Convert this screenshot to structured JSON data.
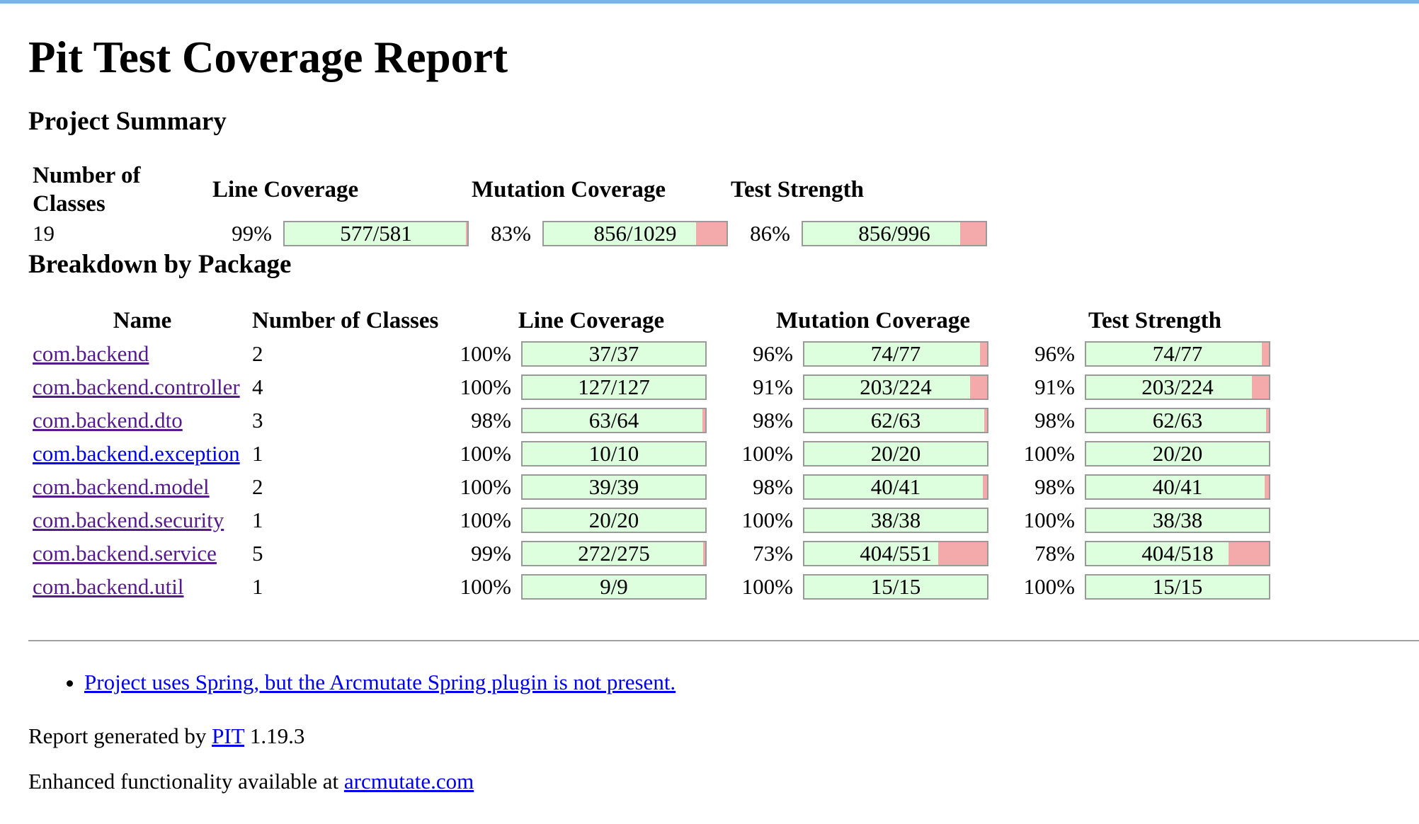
{
  "title": "Pit Test Coverage Report",
  "summary": {
    "heading": "Project Summary",
    "headers": {
      "classes": "Number of Classes",
      "line": "Line Coverage",
      "mutation": "Mutation Coverage",
      "strength": "Test Strength"
    },
    "classes": "19",
    "line": {
      "pct": "99%",
      "text": "577/581",
      "ratio": 0.9931
    },
    "mutation": {
      "pct": "83%",
      "text": "856/1029",
      "ratio": 0.8319
    },
    "strength": {
      "pct": "86%",
      "text": "856/996",
      "ratio": 0.8594
    }
  },
  "breakdown": {
    "heading": "Breakdown by Package",
    "headers": {
      "name": "Name",
      "classes": "Number of Classes",
      "line": "Line Coverage",
      "mutation": "Mutation Coverage",
      "strength": "Test Strength"
    },
    "rows": [
      {
        "name": "com.backend",
        "classes": "2",
        "line": {
          "pct": "100%",
          "text": "37/37",
          "ratio": 1.0
        },
        "mutation": {
          "pct": "96%",
          "text": "74/77",
          "ratio": 0.961
        },
        "strength": {
          "pct": "96%",
          "text": "74/77",
          "ratio": 0.961
        }
      },
      {
        "name": "com.backend.controller",
        "classes": "4",
        "line": {
          "pct": "100%",
          "text": "127/127",
          "ratio": 1.0
        },
        "mutation": {
          "pct": "91%",
          "text": "203/224",
          "ratio": 0.906
        },
        "strength": {
          "pct": "91%",
          "text": "203/224",
          "ratio": 0.906
        }
      },
      {
        "name": "com.backend.dto",
        "classes": "3",
        "line": {
          "pct": "98%",
          "text": "63/64",
          "ratio": 0.984
        },
        "mutation": {
          "pct": "98%",
          "text": "62/63",
          "ratio": 0.984
        },
        "strength": {
          "pct": "98%",
          "text": "62/63",
          "ratio": 0.984
        }
      },
      {
        "name": "com.backend.exception",
        "classes": "1",
        "visited": false,
        "line": {
          "pct": "100%",
          "text": "10/10",
          "ratio": 1.0
        },
        "mutation": {
          "pct": "100%",
          "text": "20/20",
          "ratio": 1.0
        },
        "strength": {
          "pct": "100%",
          "text": "20/20",
          "ratio": 1.0
        }
      },
      {
        "name": "com.backend.model",
        "classes": "2",
        "line": {
          "pct": "100%",
          "text": "39/39",
          "ratio": 1.0
        },
        "mutation": {
          "pct": "98%",
          "text": "40/41",
          "ratio": 0.976
        },
        "strength": {
          "pct": "98%",
          "text": "40/41",
          "ratio": 0.976
        }
      },
      {
        "name": "com.backend.security",
        "classes": "1",
        "line": {
          "pct": "100%",
          "text": "20/20",
          "ratio": 1.0
        },
        "mutation": {
          "pct": "100%",
          "text": "38/38",
          "ratio": 1.0
        },
        "strength": {
          "pct": "100%",
          "text": "38/38",
          "ratio": 1.0
        }
      },
      {
        "name": "com.backend.service",
        "classes": "5",
        "line": {
          "pct": "99%",
          "text": "272/275",
          "ratio": 0.989
        },
        "mutation": {
          "pct": "73%",
          "text": "404/551",
          "ratio": 0.733
        },
        "strength": {
          "pct": "78%",
          "text": "404/518",
          "ratio": 0.78
        }
      },
      {
        "name": "com.backend.util",
        "classes": "1",
        "line": {
          "pct": "100%",
          "text": "9/9",
          "ratio": 1.0
        },
        "mutation": {
          "pct": "100%",
          "text": "15/15",
          "ratio": 1.0
        },
        "strength": {
          "pct": "100%",
          "text": "15/15",
          "ratio": 1.0
        }
      }
    ]
  },
  "notes": [
    "Project uses Spring, but the Arcmutate Spring plugin is not present."
  ],
  "footer": {
    "generated_prefix": "Report generated by ",
    "generated_link": "PIT",
    "generated_suffix": " 1.19.3",
    "enhanced_prefix": "Enhanced functionality available at ",
    "enhanced_link": "arcmutate.com"
  },
  "colors": {
    "covered": "#ddffdd",
    "uncovered": "#f4aaaa",
    "link": "#551a8b",
    "link_unvisited": "#0000ee",
    "top_border": "#7ab4e6"
  }
}
